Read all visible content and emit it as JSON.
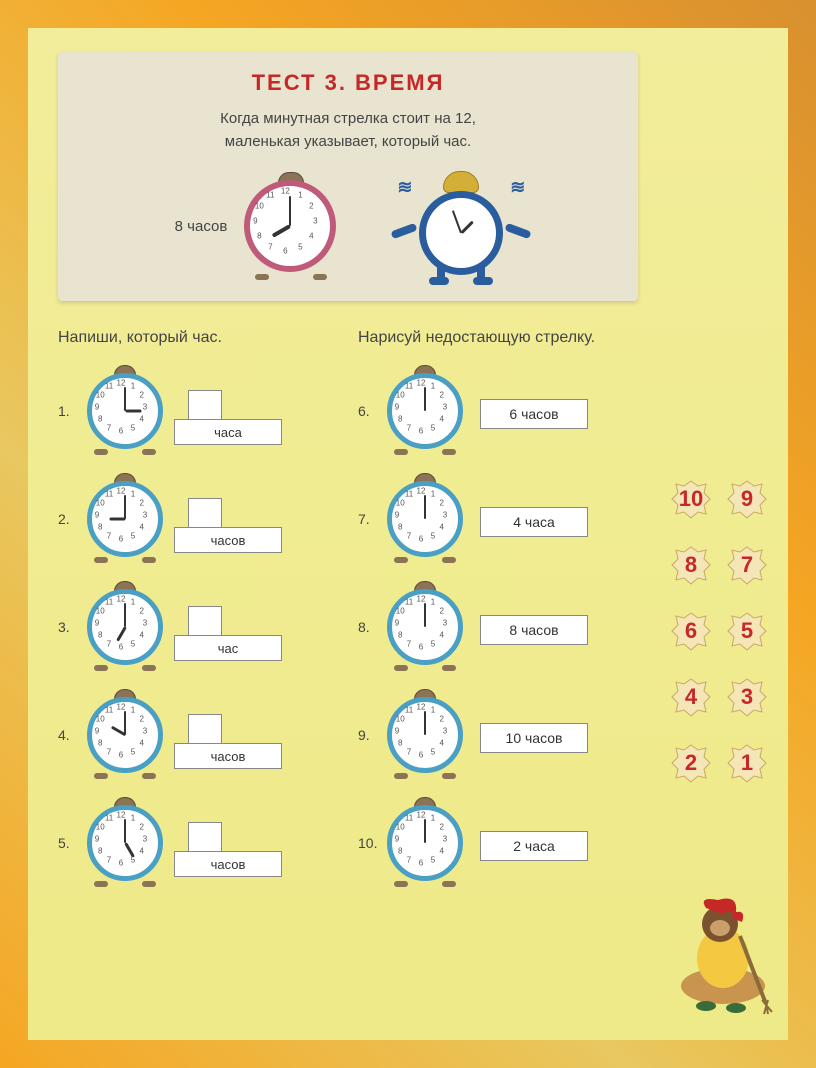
{
  "title": "ТЕСТ 3. ВРЕМЯ",
  "subtitle_line1": "Когда минутная стрелка стоит на 12,",
  "subtitle_line2": "маленькая указывает, который час.",
  "example": {
    "label": "8 часов",
    "clock": {
      "hour": 8,
      "minute": 0,
      "ring_color": "#c05a7a"
    }
  },
  "col1_title": "Напиши, который час.",
  "col2_title": "Нарисуй недостающую стрелку.",
  "tasks_left": [
    {
      "n": "1.",
      "hour": 3,
      "minute": 0,
      "unit": "часа"
    },
    {
      "n": "2.",
      "hour": 9,
      "minute": 0,
      "unit": "часов"
    },
    {
      "n": "3.",
      "hour": 7,
      "minute": 0,
      "unit": "час"
    },
    {
      "n": "4.",
      "hour": 10,
      "minute": 0,
      "unit": "часов"
    },
    {
      "n": "5.",
      "hour": 5,
      "minute": 0,
      "unit": "часов"
    }
  ],
  "tasks_right": [
    {
      "n": "6.",
      "answer": "6 часов",
      "minute": 0
    },
    {
      "n": "7.",
      "answer": "4 часа",
      "minute": 0
    },
    {
      "n": "8.",
      "answer": "8 часов",
      "minute": 0
    },
    {
      "n": "9.",
      "answer": "10 часов",
      "minute": 0
    },
    {
      "n": "10.",
      "answer": "2 часа",
      "minute": 0
    }
  ],
  "leaf_pairs": [
    [
      "10",
      "9"
    ],
    [
      "8",
      "7"
    ],
    [
      "6",
      "5"
    ],
    [
      "4",
      "3"
    ],
    [
      "2",
      "1"
    ]
  ],
  "clock_ring_color": "#4a9fc4",
  "clock_numbers": [
    "12",
    "1",
    "2",
    "3",
    "4",
    "5",
    "6",
    "7",
    "8",
    "9",
    "10",
    "11"
  ],
  "colors": {
    "title": "#c62828",
    "page_bg": "#f2ed9a",
    "header_bg": "#e8e4d0",
    "leaf_fill": "#f5e6b8",
    "leaf_stroke": "#c9a860"
  }
}
